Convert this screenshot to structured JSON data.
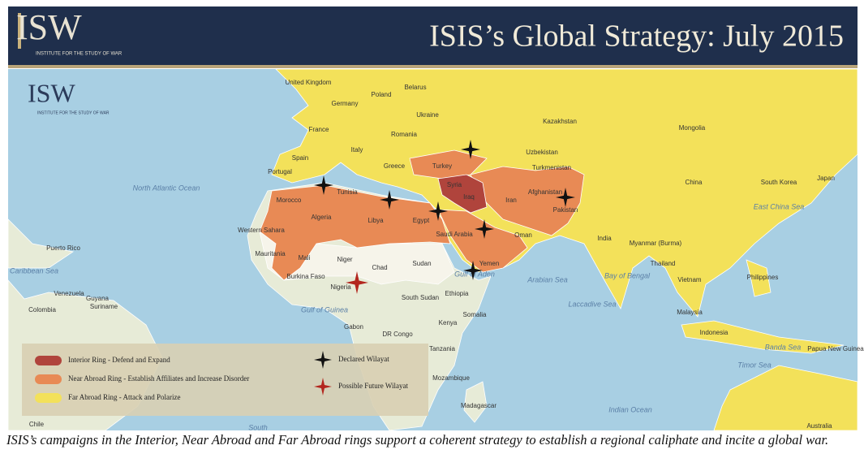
{
  "header": {
    "logo": {
      "name": "ISW",
      "subtitle": "INSTITUTE FOR THE STUDY OF WAR"
    },
    "title": "ISIS’s Global Strategy: July 2015"
  },
  "map": {
    "logo": {
      "name": "ISW",
      "subtitle": "INSTITUTE FOR THE STUDY OF WAR"
    },
    "labels": [
      "United Kingdom",
      "Belarus",
      "Poland",
      "Germany",
      "Ukraine",
      "France",
      "Romania",
      "Kazakhstan",
      "Mongolia",
      "Spain",
      "Italy",
      "Greece",
      "Turkey",
      "Uzbekistan",
      "Turkmenistan",
      "Portugal",
      "Syria",
      "Iraq",
      "Iran",
      "Afghanistan",
      "Tunisia",
      "Morocco",
      "Algeria",
      "Libya",
      "Egypt",
      "Pakistan",
      "China",
      "Japan",
      "South Korea",
      "Western Sahara",
      "Saudi Arabia",
      "Oman",
      "India",
      "Myanmar (Burma)",
      "Mauritania",
      "Mali",
      "Niger",
      "Chad",
      "Sudan",
      "Yemen",
      "Thailand",
      "Philippines",
      "Vietnam",
      "Burkina Faso",
      "Nigeria",
      "Ethiopia",
      "South Sudan",
      "Somalia",
      "Malaysia",
      "Gabon",
      "DR Congo",
      "Kenya",
      "Tanzania",
      "Indonesia",
      "Papua New Guinea",
      "Mozambique",
      "Madagascar",
      "Australia",
      "Colombia",
      "Venezuela",
      "Guyana",
      "Suriname",
      "Puerto Rico",
      "Chile",
      "North Atlantic Ocean",
      "Caribbean Sea",
      "East China Sea",
      "Gulf of Aden",
      "Arabian Sea",
      "Bay of Bengal",
      "Laccadive Sea",
      "Gulf of Guinea",
      "Banda Sea",
      "Timor Sea",
      "Indian Ocean",
      "South"
    ],
    "legend": {
      "rings": [
        {
          "label": "Interior Ring - Defend and Expand",
          "color": "#b0443c"
        },
        {
          "label": "Near Abroad Ring - Establish Affiliates and Increase Disorder",
          "color": "#e88a55"
        },
        {
          "label": "Far Abroad Ring - Attack and Polarize",
          "color": "#f3e15a"
        }
      ],
      "markers": [
        {
          "label": "Declared Wilayat",
          "color": "#111111"
        },
        {
          "label": "Possible Future Wilayat",
          "color": "#b3261e"
        }
      ]
    }
  },
  "caption": "ISIS’s campaigns in the Interior, Near Abroad and Far Abroad rings support a coherent strategy to establish a regional caliphate and incite a global war."
}
